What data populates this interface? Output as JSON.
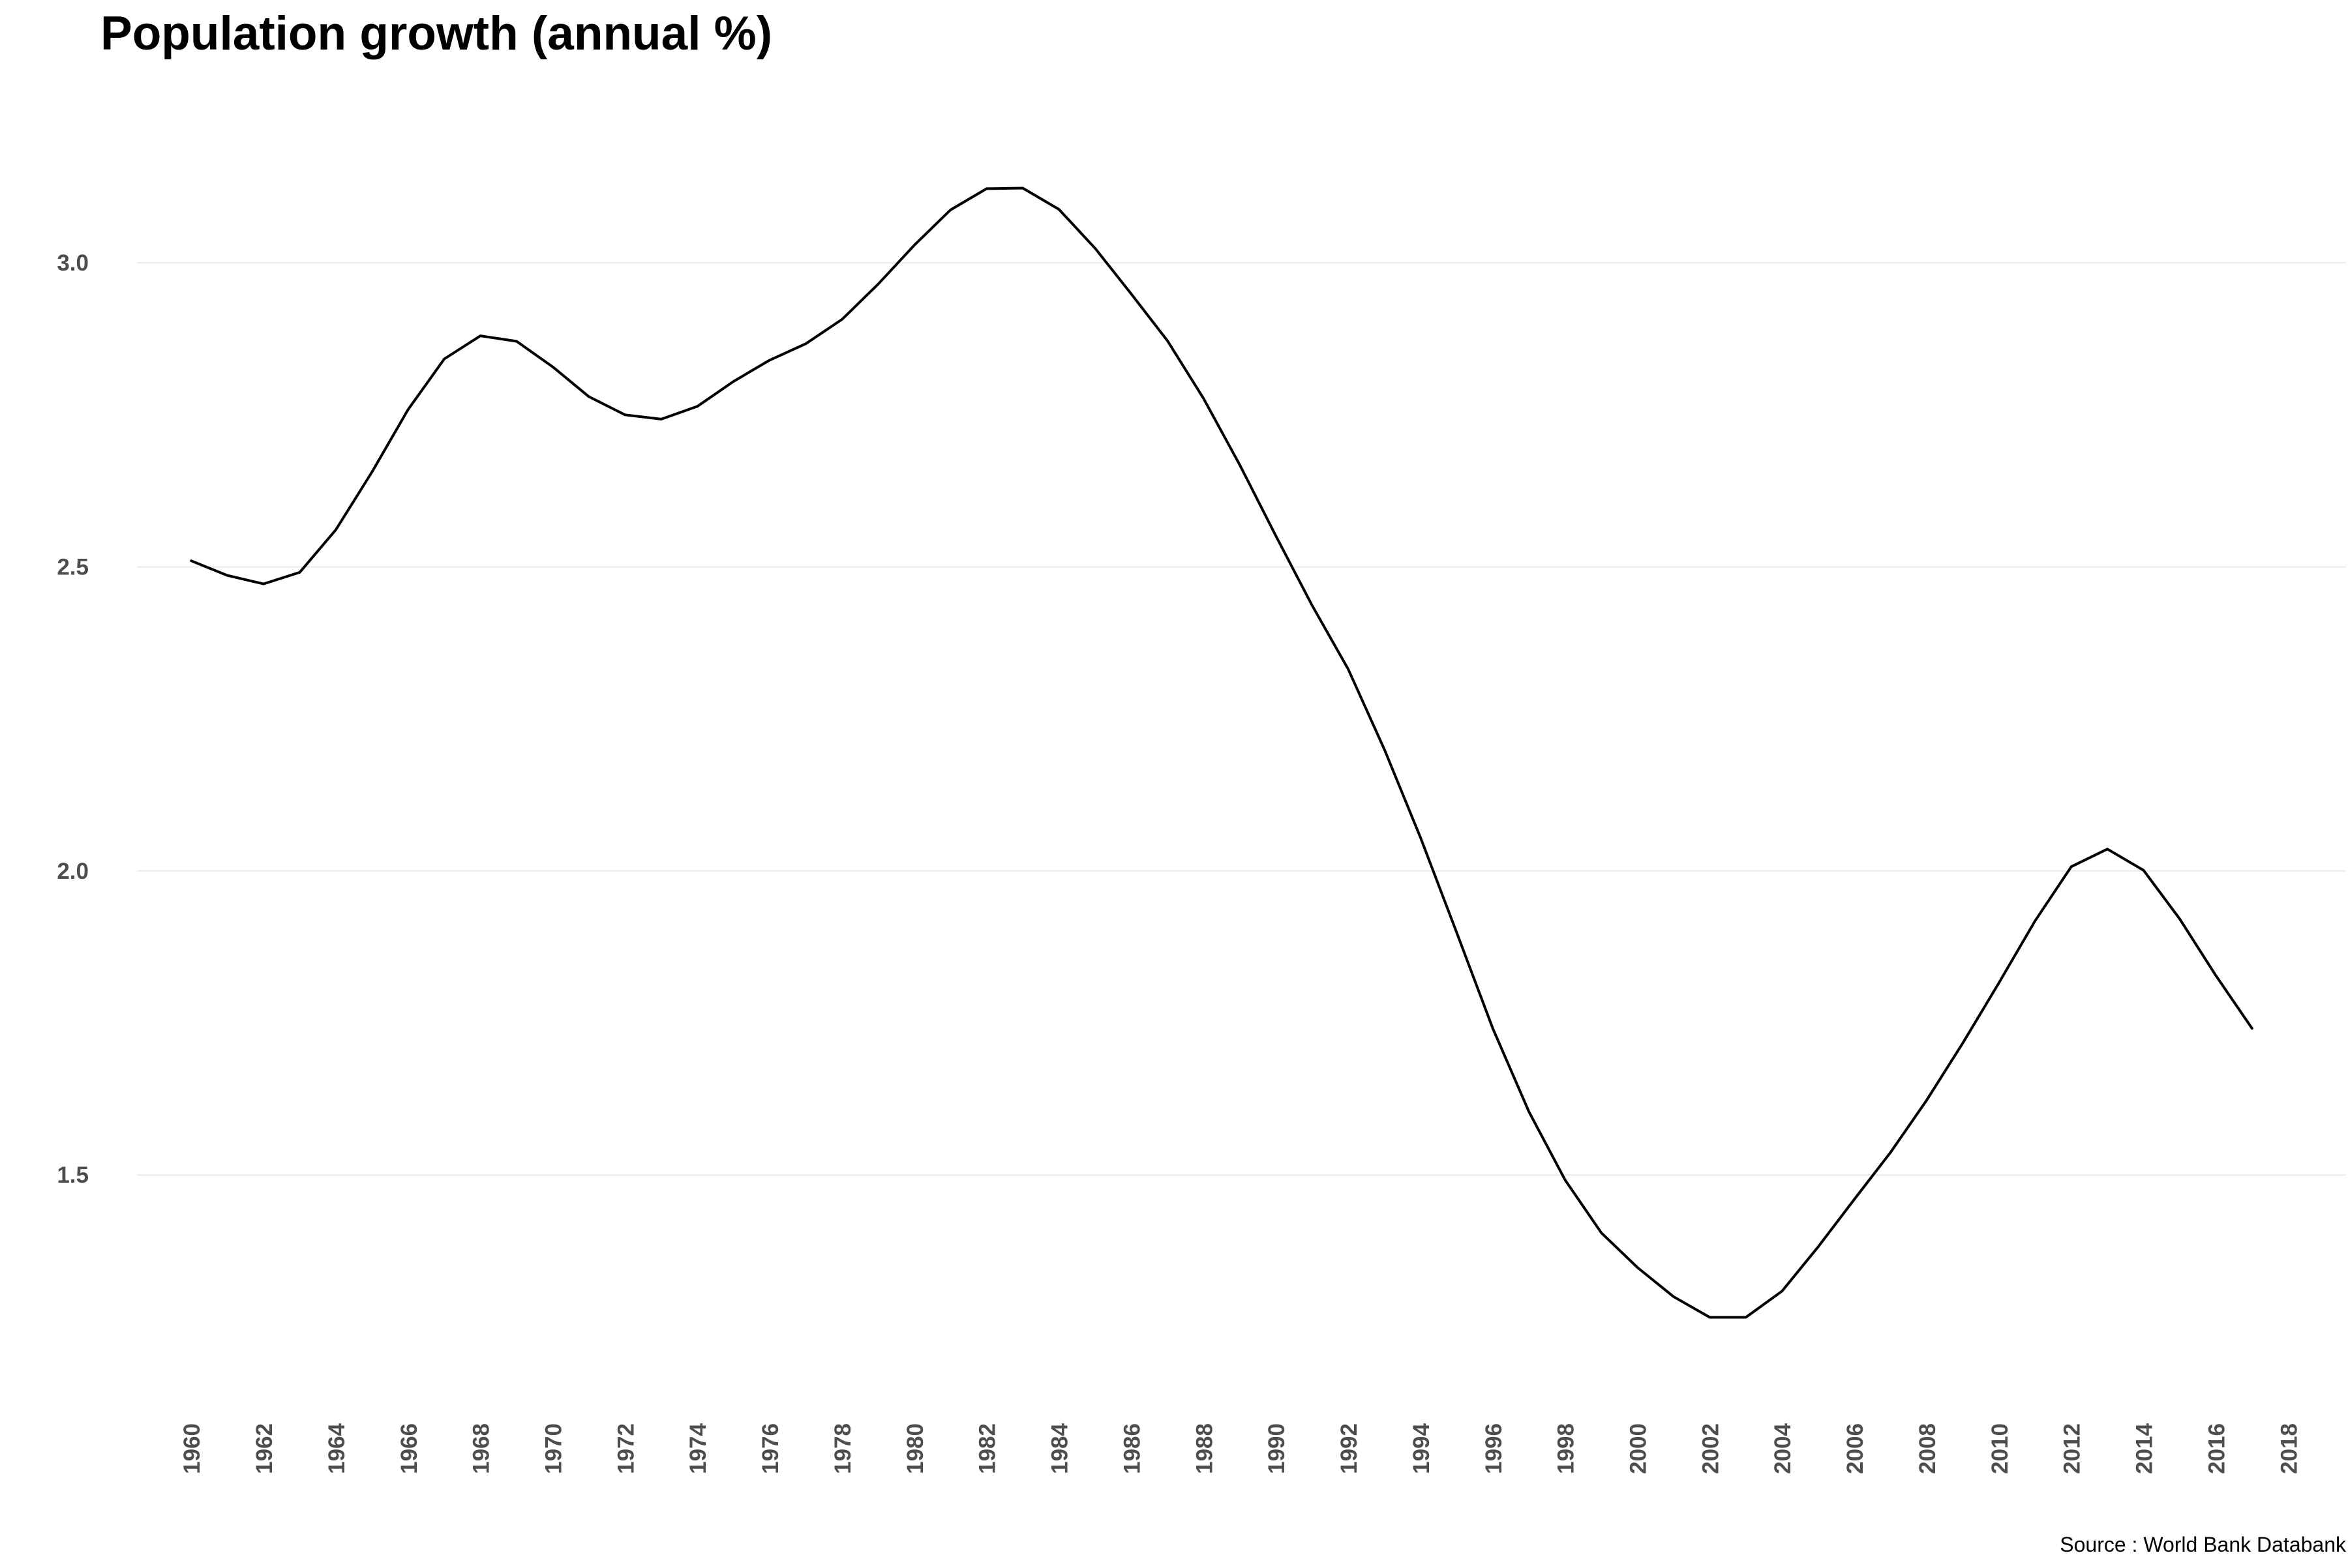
{
  "chart_data": {
    "type": "line",
    "title": "Population growth (annual %)",
    "caption": "Source : World Bank Databank",
    "xlabel": "",
    "ylabel": "",
    "xlim": [
      1958.5,
      2019.6
    ],
    "ylim": [
      1.17,
      3.25
    ],
    "x_ticks": [
      1960,
      1962,
      1964,
      1966,
      1968,
      1970,
      1972,
      1974,
      1976,
      1978,
      1980,
      1982,
      1984,
      1986,
      1988,
      1990,
      1992,
      1994,
      1996,
      1998,
      2000,
      2002,
      2004,
      2006,
      2008,
      2010,
      2012,
      2014,
      2016,
      2018
    ],
    "x_tick_labels": [
      "1960",
      "1962",
      "1964",
      "1966",
      "1968",
      "1970",
      "1972",
      "1974",
      "1976",
      "1978",
      "1980",
      "1982",
      "1984",
      "1986",
      "1988",
      "1990",
      "1992",
      "1994",
      "1996",
      "1998",
      "2000",
      "2002",
      "2004",
      "2006",
      "2008",
      "2010",
      "2012",
      "2014",
      "2016",
      "2018"
    ],
    "y_ticks": [
      1.5,
      2.0,
      2.5,
      3.0
    ],
    "y_tick_labels": [
      "1.5",
      "2.0",
      "2.5",
      "3.0"
    ],
    "grid": true,
    "line_color": "#000000",
    "x": [
      1960,
      1961,
      1962,
      1963,
      1964,
      1965,
      1966,
      1967,
      1968,
      1969,
      1970,
      1971,
      1972,
      1973,
      1974,
      1975,
      1976,
      1977,
      1978,
      1979,
      1980,
      1981,
      1982,
      1983,
      1984,
      1985,
      1986,
      1987,
      1988,
      1989,
      1990,
      1991,
      1992,
      1993,
      1994,
      1995,
      1996,
      1997,
      1998,
      1999,
      2000,
      2001,
      2002,
      2003,
      2004,
      2005,
      2006,
      2007,
      2008,
      2009,
      2010,
      2011,
      2012,
      2013,
      2014,
      2015,
      2016,
      2017
    ],
    "values": [
      2.51,
      2.486,
      2.472,
      2.491,
      2.561,
      2.656,
      2.759,
      2.842,
      2.88,
      2.871,
      2.829,
      2.78,
      2.75,
      2.743,
      2.764,
      2.805,
      2.84,
      2.867,
      2.907,
      2.965,
      3.029,
      3.087,
      3.122,
      3.123,
      3.088,
      3.024,
      2.949,
      2.872,
      2.777,
      2.668,
      2.551,
      2.437,
      2.332,
      2.2,
      2.055,
      1.899,
      1.741,
      1.604,
      1.492,
      1.405,
      1.348,
      1.3,
      1.266,
      1.266,
      1.309,
      1.382,
      1.46,
      1.537,
      1.623,
      1.717,
      1.816,
      1.918,
      2.007,
      2.036,
      2.001,
      1.921,
      1.828,
      1.741
    ]
  }
}
